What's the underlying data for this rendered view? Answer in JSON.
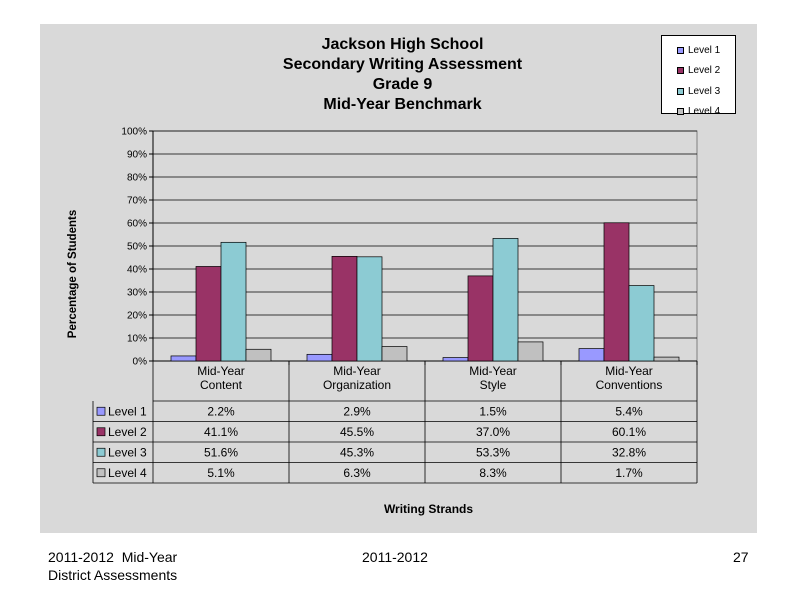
{
  "footer": {
    "left_line1": "2011-2012  Mid-Year",
    "left_line2": "District Assessments",
    "center": "2011-2012",
    "page_number": "27"
  },
  "chart_data": {
    "type": "bar",
    "title": [
      "Jackson High School",
      "Secondary Writing Assessment",
      "Grade 9",
      "Mid-Year Benchmark"
    ],
    "xlabel": "Writing Strands",
    "ylabel": "Percentage of Students",
    "ylim": [
      0,
      100
    ],
    "yticks": [
      "0%",
      "10%",
      "20%",
      "30%",
      "40%",
      "50%",
      "60%",
      "70%",
      "80%",
      "90%",
      "100%"
    ],
    "categories": [
      [
        "Mid-Year",
        "Content"
      ],
      [
        "Mid-Year",
        "Organization"
      ],
      [
        "Mid-Year",
        "Style"
      ],
      [
        "Mid-Year",
        "Conventions"
      ]
    ],
    "series": [
      {
        "name": "Level 1",
        "color": "#9999ff",
        "values": [
          2.2,
          2.9,
          1.5,
          5.4
        ],
        "labels": [
          "2.2%",
          "2.9%",
          "1.5%",
          "5.4%"
        ]
      },
      {
        "name": "Level 2",
        "color": "#993366",
        "values": [
          41.1,
          45.5,
          37.0,
          60.1
        ],
        "labels": [
          "41.1%",
          "45.5%",
          "37.0%",
          "60.1%"
        ]
      },
      {
        "name": "Level 3",
        "color": "#8ccbd3",
        "values": [
          51.6,
          45.3,
          53.3,
          32.8
        ],
        "labels": [
          "51.6%",
          "45.3%",
          "53.3%",
          "32.8%"
        ]
      },
      {
        "name": "Level 4",
        "color": "#c0c0c0",
        "values": [
          5.1,
          6.3,
          8.3,
          1.7
        ],
        "labels": [
          "5.1%",
          "6.3%",
          "8.3%",
          "1.7%"
        ]
      }
    ],
    "grid": true,
    "legend": "top-right"
  }
}
